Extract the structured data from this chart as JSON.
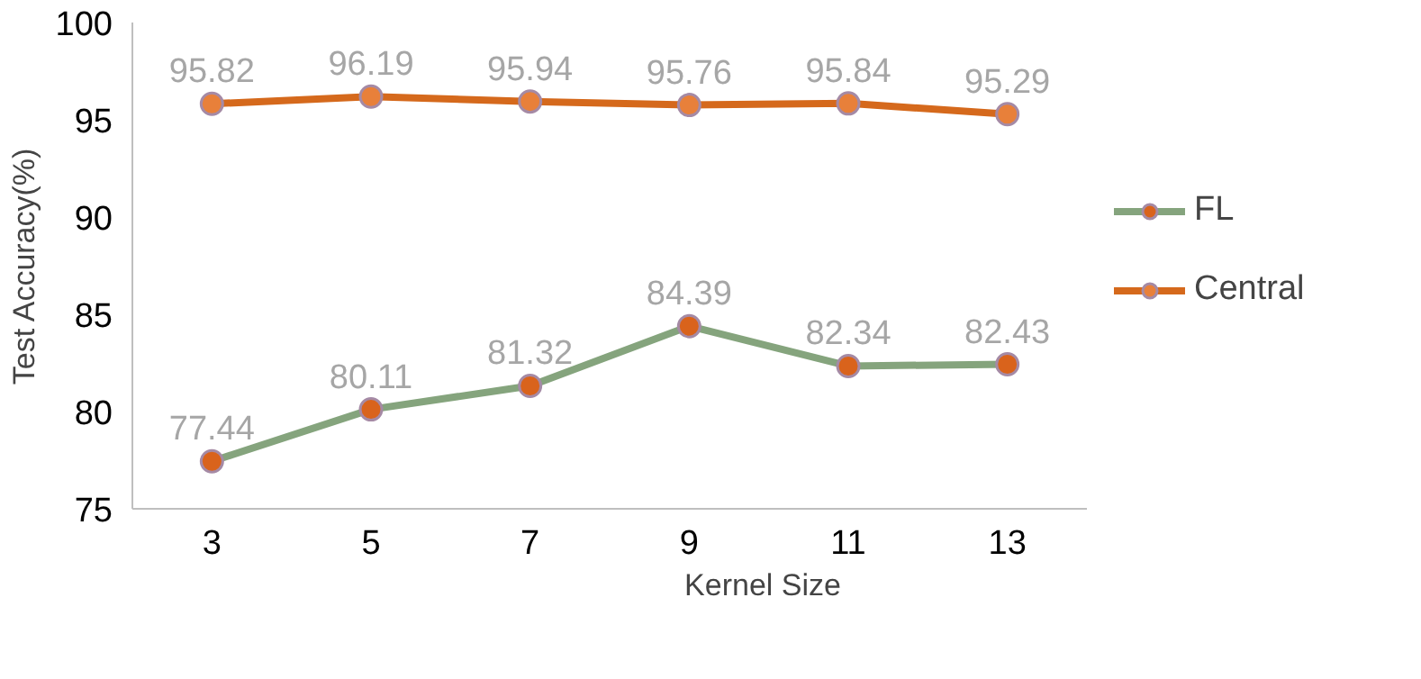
{
  "chart_data": {
    "type": "line",
    "xlabel": "Kernel Size",
    "ylabel": "Test Accuracy(%)",
    "categories": [
      "3",
      "5",
      "7",
      "9",
      "11",
      "13"
    ],
    "ylim": [
      75,
      100
    ],
    "yticks": [
      75,
      80,
      85,
      90,
      95,
      100
    ],
    "grid": false,
    "legend": "right",
    "marker": "circle",
    "line_style": "solid",
    "data_labels": true,
    "series": [
      {
        "name": "FL",
        "color": "#85a47d",
        "colors": [
          "#d9631c",
          "#d9631c",
          "#d9631c",
          "#d9631c",
          "#d9631c",
          "#d9631c"
        ],
        "values": [
          77.44,
          80.11,
          81.32,
          84.39,
          82.34,
          82.43
        ]
      },
      {
        "name": "Central",
        "color": "#d5691c",
        "colors": [
          "#e8803a",
          "#e8803a",
          "#e8803a",
          "#e8803a",
          "#e8803a",
          "#e8803a"
        ],
        "values": [
          95.82,
          96.19,
          95.94,
          95.76,
          95.84,
          95.29
        ]
      }
    ]
  }
}
